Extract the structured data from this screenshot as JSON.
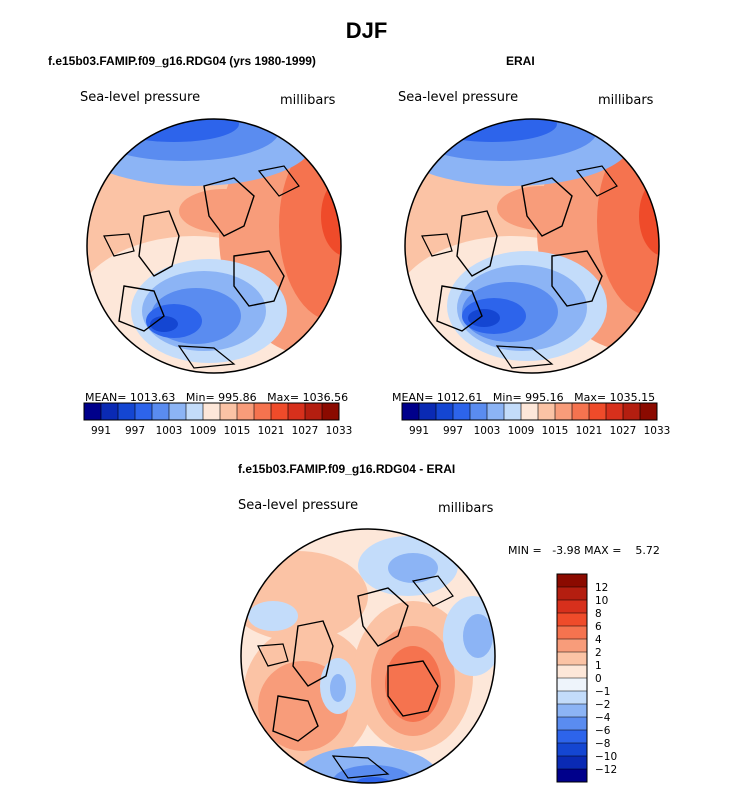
{
  "figure": {
    "title": "DJF",
    "variable": "Sea-level pressure",
    "units": "millibars"
  },
  "colors": {
    "slp": [
      "#00008b",
      "#0a2ab4",
      "#1446d2",
      "#2d64eb",
      "#5a8cf0",
      "#8cb4f5",
      "#c3dcfa",
      "#fde7d9",
      "#fbc3a5",
      "#f89c7a",
      "#f5734f",
      "#ef4b2a",
      "#d7301c",
      "#b41e10",
      "#8b0a00"
    ],
    "diff": [
      "#00008b",
      "#0a2ab4",
      "#1446d2",
      "#2d64eb",
      "#5a8cf0",
      "#8cb4f5",
      "#c3dcfa",
      "#eef4fb",
      "#fde7d9",
      "#fbc3a5",
      "#f89c7a",
      "#f5734f",
      "#ef4b2a",
      "#d7301c",
      "#b41e10",
      "#8b0a00"
    ],
    "land_outline": "#000000"
  },
  "chart_data": [
    {
      "type": "heatmap",
      "projection": "north-polar-stereographic",
      "title": "f.e15b03.FAMIP.f09_g16.RDG04 (yrs 1980-1999)",
      "variable": "Sea-level pressure",
      "units": "millibars",
      "stats": {
        "mean": "1013.63",
        "min": "995.86",
        "max": "1036.56"
      },
      "levels": [
        991,
        994,
        997,
        1000,
        1003,
        1006,
        1009,
        1012,
        1015,
        1018,
        1021,
        1024,
        1027,
        1030,
        1033,
        1036
      ],
      "colorbar_labels": [
        "991",
        "997",
        "1003",
        "1009",
        "1015",
        "1021",
        "1027",
        "1033"
      ],
      "colorbar_position": "bottom"
    },
    {
      "type": "heatmap",
      "projection": "north-polar-stereographic",
      "title": "ERAI",
      "variable": "Sea-level pressure",
      "units": "millibars",
      "stats": {
        "mean": "1012.61",
        "min": "995.16",
        "max": "1035.15"
      },
      "levels": [
        991,
        994,
        997,
        1000,
        1003,
        1006,
        1009,
        1012,
        1015,
        1018,
        1021,
        1024,
        1027,
        1030,
        1033,
        1036
      ],
      "colorbar_labels": [
        "991",
        "997",
        "1003",
        "1009",
        "1015",
        "1021",
        "1027",
        "1033"
      ],
      "colorbar_position": "bottom"
    },
    {
      "type": "heatmap",
      "projection": "north-polar-stereographic",
      "title": "f.e15b03.FAMIP.f09_g16.RDG04 - ERAI",
      "variable": "Sea-level pressure",
      "units": "millibars",
      "stats": {
        "min": "-3.98",
        "max": "5.72"
      },
      "levels": [
        -12,
        -10,
        -8,
        -6,
        -4,
        -2,
        -1,
        0,
        1,
        2,
        4,
        6,
        8,
        10,
        12
      ],
      "colorbar_labels": [
        "12",
        "10",
        "8",
        "6",
        "4",
        "2",
        "1",
        "0",
        "−1",
        "−2",
        "−4",
        "−6",
        "−8",
        "−10",
        "−12"
      ],
      "colorbar_position": "right"
    }
  ],
  "labels": {
    "stat_prefix_mean": "MEAN=",
    "stat_prefix_min": "Min=",
    "stat_prefix_max": "Max=",
    "diff_min_prefix": "MIN =",
    "diff_max_prefix": "MAX ="
  }
}
